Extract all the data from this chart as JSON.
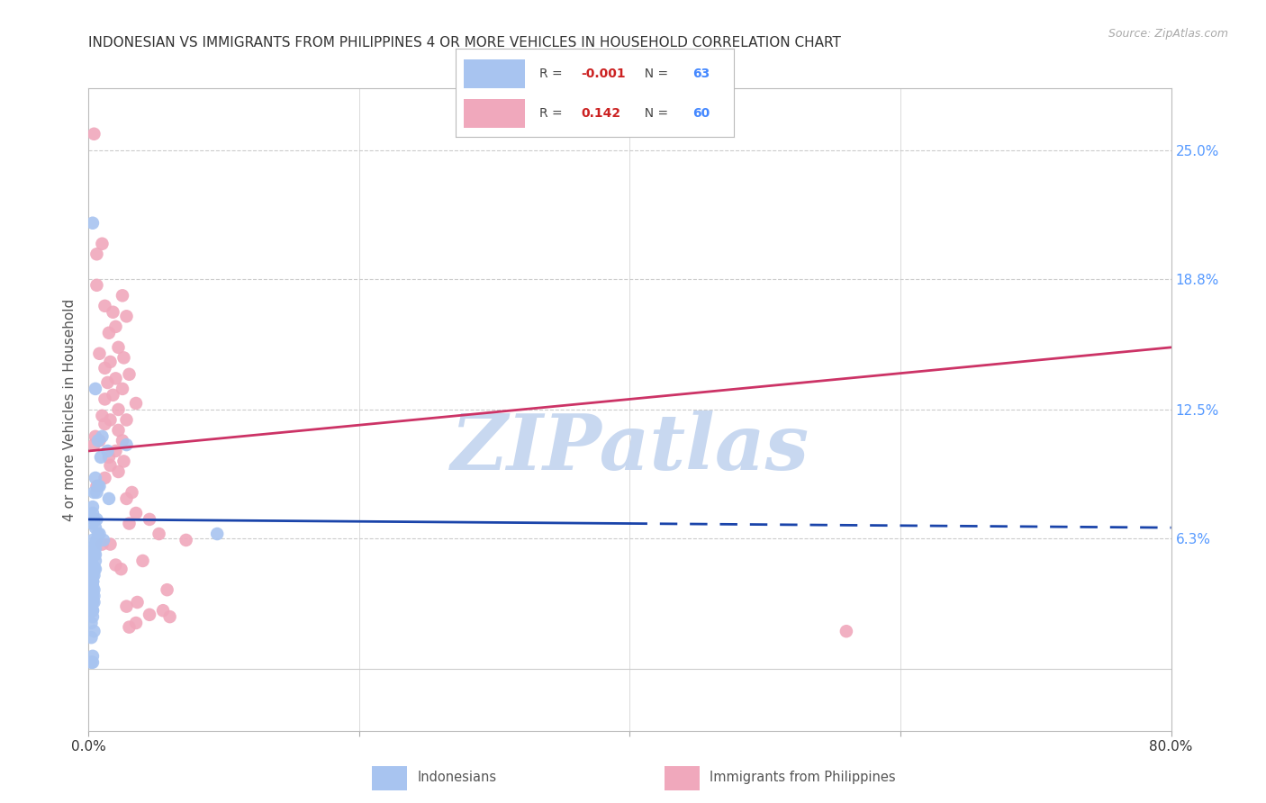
{
  "title": "INDONESIAN VS IMMIGRANTS FROM PHILIPPINES 4 OR MORE VEHICLES IN HOUSEHOLD CORRELATION CHART",
  "source": "Source: ZipAtlas.com",
  "ylabel": "4 or more Vehicles in Household",
  "xmin": 0.0,
  "xmax": 80.0,
  "ymin": -3.0,
  "ymax": 28.0,
  "yticks": [
    0.0,
    6.3,
    12.5,
    18.8,
    25.0
  ],
  "ytick_labels": [
    "",
    "6.3%",
    "12.5%",
    "18.8%",
    "25.0%"
  ],
  "xticks": [
    0.0,
    20.0,
    40.0,
    60.0,
    80.0
  ],
  "xtick_labels": [
    "0.0%",
    "",
    "",
    "",
    "80.0%"
  ],
  "blue_color": "#a8c4f0",
  "pink_color": "#f0a8bc",
  "blue_line_color": "#1a44aa",
  "pink_line_color": "#cc3366",
  "blue_R": -0.001,
  "blue_N": 63,
  "pink_R": 0.142,
  "pink_N": 60,
  "blue_line_x0": 0.0,
  "blue_line_y0": 7.2,
  "blue_line_x1": 80.0,
  "blue_line_y1": 6.8,
  "blue_solid_end": 40.0,
  "pink_line_x0": 0.0,
  "pink_line_y0": 10.5,
  "pink_line_x1": 80.0,
  "pink_line_y1": 15.5,
  "blue_scatter_x": [
    0.3,
    0.5,
    1.4,
    0.4,
    0.3,
    0.5,
    0.9,
    0.4,
    0.3,
    0.6,
    0.8,
    0.3,
    0.2,
    0.5,
    0.7,
    0.3,
    0.4,
    0.5,
    0.2,
    0.3,
    1.0,
    0.3,
    0.6,
    0.4,
    0.2,
    0.3,
    0.5,
    0.7,
    0.3,
    0.5,
    0.4,
    0.2,
    0.3,
    0.3,
    0.5,
    0.2,
    0.4,
    1.1,
    0.3,
    0.3,
    2.8,
    1.5,
    0.2,
    0.3,
    0.4,
    0.6,
    0.3,
    0.2,
    0.4,
    0.8,
    0.3,
    0.5,
    0.3,
    0.4,
    0.2,
    0.3,
    0.4,
    0.3,
    0.7,
    9.5,
    0.3,
    0.2,
    0.3
  ],
  "blue_scatter_y": [
    21.5,
    13.5,
    10.5,
    8.5,
    7.8,
    9.2,
    10.2,
    7.2,
    7.5,
    8.5,
    8.8,
    7.0,
    7.3,
    6.0,
    6.5,
    6.2,
    5.5,
    5.8,
    5.2,
    5.0,
    11.2,
    5.8,
    6.2,
    4.8,
    5.5,
    4.2,
    5.2,
    8.8,
    4.5,
    6.8,
    4.9,
    4.7,
    4.0,
    4.2,
    5.5,
    3.2,
    4.5,
    6.2,
    3.5,
    3.8,
    10.8,
    8.2,
    3.0,
    3.2,
    3.8,
    7.2,
    2.8,
    2.2,
    3.5,
    6.5,
    4.2,
    4.8,
    2.5,
    3.2,
    1.5,
    0.3,
    1.8,
    2.8,
    11.0,
    6.5,
    0.6,
    0.3,
    4.2
  ],
  "pink_scatter_x": [
    0.4,
    1.0,
    0.6,
    2.5,
    1.2,
    1.8,
    2.8,
    1.5,
    2.0,
    2.2,
    0.8,
    2.6,
    1.6,
    1.2,
    3.0,
    2.0,
    1.4,
    2.5,
    1.8,
    1.2,
    3.5,
    2.2,
    1.0,
    2.8,
    1.6,
    1.2,
    2.2,
    0.5,
    0.8,
    2.5,
    0.4,
    2.0,
    1.5,
    2.6,
    1.6,
    2.2,
    1.2,
    0.6,
    3.2,
    2.8,
    1.6,
    1.0,
    4.5,
    3.5,
    5.2,
    3.0,
    4.0,
    2.0,
    2.4,
    7.2,
    5.8,
    3.6,
    2.8,
    5.5,
    6.0,
    3.5,
    3.0,
    0.6,
    4.5,
    56.0
  ],
  "pink_scatter_y": [
    25.8,
    20.5,
    20.0,
    18.0,
    17.5,
    17.2,
    17.0,
    16.2,
    16.5,
    15.5,
    15.2,
    15.0,
    14.8,
    14.5,
    14.2,
    14.0,
    13.8,
    13.5,
    13.2,
    13.0,
    12.8,
    12.5,
    12.2,
    12.0,
    12.0,
    11.8,
    11.5,
    11.2,
    11.0,
    11.0,
    10.8,
    10.5,
    10.2,
    10.0,
    9.8,
    9.5,
    9.2,
    8.8,
    8.5,
    8.2,
    6.0,
    6.0,
    7.2,
    7.5,
    6.5,
    7.0,
    5.2,
    5.0,
    4.8,
    6.2,
    3.8,
    3.2,
    3.0,
    2.8,
    2.5,
    2.2,
    2.0,
    18.5,
    2.6,
    1.8
  ],
  "watermark": "ZIPatlas",
  "watermark_color": "#c8d8f0",
  "bg_color": "#ffffff",
  "grid_color": "#cccccc"
}
